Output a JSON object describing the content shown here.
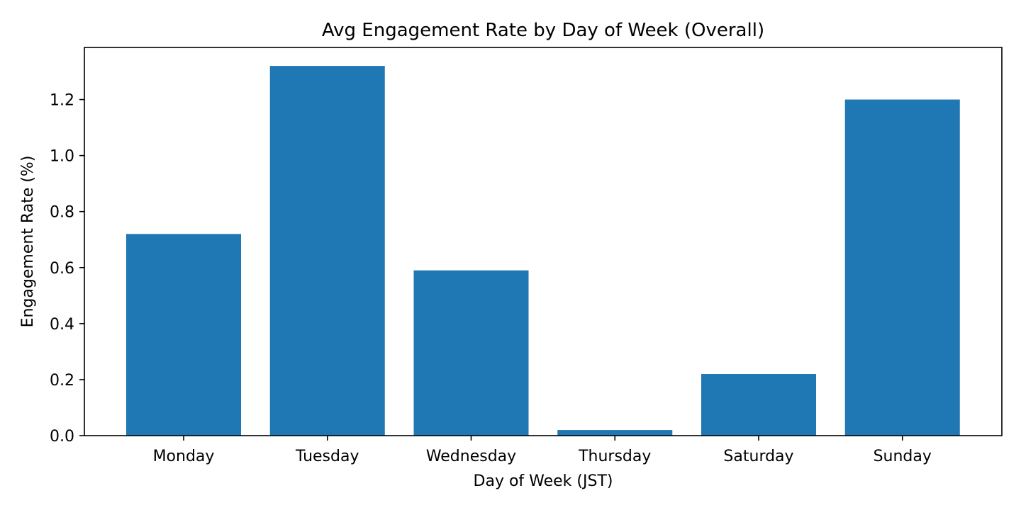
{
  "chart_data": {
    "type": "bar",
    "title": "Avg Engagement Rate by Day of Week (Overall)",
    "xlabel": "Day of Week (JST)",
    "ylabel": "Engagement Rate (%)",
    "categories": [
      "Monday",
      "Tuesday",
      "Wednesday",
      "Thursday",
      "Saturday",
      "Sunday"
    ],
    "values": [
      0.72,
      1.32,
      0.59,
      0.02,
      0.22,
      1.2
    ],
    "ylim": [
      0,
      1.386
    ],
    "yticks": [
      "0.0",
      "0.2",
      "0.4",
      "0.6",
      "0.8",
      "1.0",
      "1.2"
    ],
    "grid": false,
    "bar_color": "#1f77b4"
  }
}
